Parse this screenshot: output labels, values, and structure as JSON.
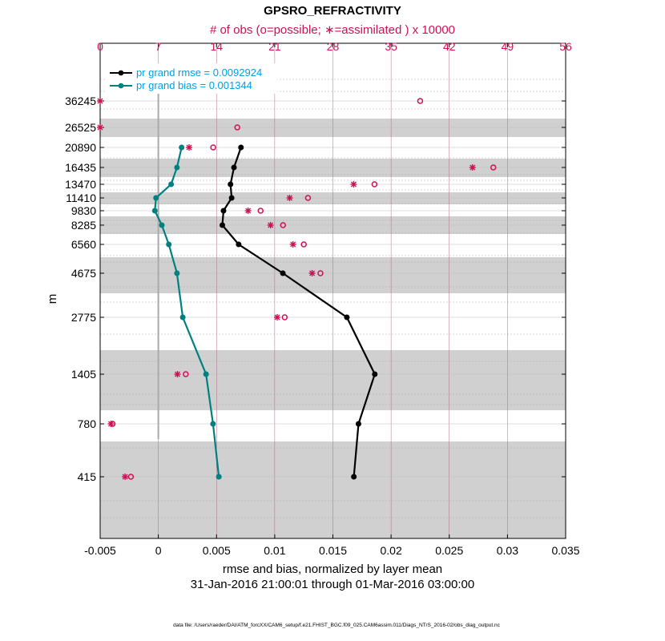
{
  "chart_data": {
    "type": "line",
    "title": "GPSRO_REFRACTIVITY",
    "top_axis_label": "# of obs (o=possible; ∗=assimilated ) x 10000",
    "xlabel": "rmse and bias, normalized by layer mean",
    "ylabel": "m",
    "date_range": "31-Jan-2016 21:00:01 through 01-Mar-2016 03:00:00",
    "footer": "data file: /Users/raeder/DAI/ATM_forcXX/CAM6_setup/f.e21.FHIST_BGC.f09_025.CAM6assim.011/Diags_NTrS_2016-02/obs_diag_output.nc",
    "xlim": [
      -0.005,
      0.035
    ],
    "x_ticks": [
      "-0.005",
      "0",
      "0.005",
      "0.01",
      "0.015",
      "0.02",
      "0.025",
      "0.03",
      "0.035"
    ],
    "top_xlim": [
      0,
      56
    ],
    "top_ticks": [
      "0",
      "7",
      "14",
      "21",
      "28",
      "35",
      "42",
      "49",
      "56"
    ],
    "levels": [
      "36245",
      "26525",
      "20890",
      "16435",
      "13470",
      "11410",
      "9830",
      "8285",
      "6560",
      "4675",
      "2775",
      "1405",
      "780",
      "415"
    ],
    "series": [
      {
        "name": "rmse",
        "legend": "pr grand rmse = 0.0092924",
        "color": "#000000",
        "values": [
          null,
          null,
          0.0071,
          0.0065,
          0.0062,
          0.0063,
          0.0056,
          0.0055,
          0.0069,
          0.0107,
          0.0162,
          0.0186,
          0.0172,
          0.0168
        ]
      },
      {
        "name": "bias",
        "legend": "pr grand bias = 0.001344",
        "color": "#008080",
        "values": [
          null,
          null,
          0.002,
          0.0016,
          0.0011,
          -0.0002,
          -0.0003,
          0.0003,
          0.0009,
          0.0016,
          0.0021,
          0.0041,
          0.0047,
          0.0052
        ]
      }
    ],
    "obs_possible_x10000": [
      38.5,
      16.5,
      13.6,
      47.3,
      33,
      25,
      19.3,
      22,
      24.5,
      26.5,
      22.2,
      10.3,
      1.5,
      3.7
    ],
    "obs_assimilated_x10000": [
      0,
      0,
      10.7,
      44.8,
      30.5,
      22.8,
      17.8,
      20.5,
      23.2,
      25.5,
      21.3,
      9.3,
      1.3,
      3.0
    ],
    "vertical_ref_line_at": 0,
    "colors": {
      "obs": "#cc1155",
      "rmse": "#000000",
      "bias": "#008080",
      "legend_text": "#00a0e0",
      "band": "#d0d0d0"
    }
  }
}
